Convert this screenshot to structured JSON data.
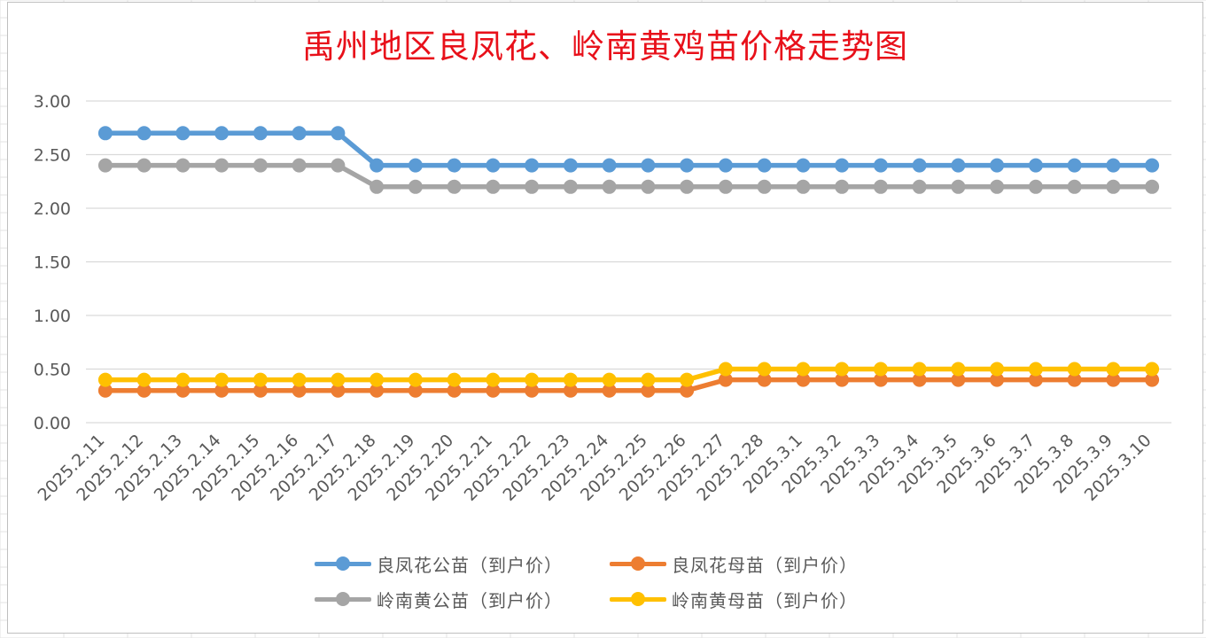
{
  "chart_data": {
    "type": "line",
    "title": "禹州地区良凤花、岭南黄鸡苗价格走势图",
    "xlabel": "",
    "ylabel": "",
    "ylim": [
      0,
      3
    ],
    "y_ticks": [
      "0.00",
      "0.50",
      "1.00",
      "1.50",
      "2.00",
      "2.50",
      "3.00"
    ],
    "grid": "horizontal",
    "legend_position": "bottom",
    "categories": [
      "2025.2.11",
      "2025.2.12",
      "2025.2.13",
      "2025.2.14",
      "2025.2.15",
      "2025.2.16",
      "2025.2.17",
      "2025.2.18",
      "2025.2.19",
      "2025.2.20",
      "2025.2.21",
      "2025.2.22",
      "2025.2.23",
      "2025.2.24",
      "2025.2.25",
      "2025.2.26",
      "2025.2.27",
      "2025.2.28",
      "2025.3.1",
      "2025.3.2",
      "2025.3.3",
      "2025.3.4",
      "2025.3.5",
      "2025.3.6",
      "2025.3.7",
      "2025.3.8",
      "2025.3.9",
      "2025.3.10"
    ],
    "series": [
      {
        "name": "良凤花公苗（到户价）",
        "color": "#5b9bd5",
        "values": [
          2.7,
          2.7,
          2.7,
          2.7,
          2.7,
          2.7,
          2.7,
          2.4,
          2.4,
          2.4,
          2.4,
          2.4,
          2.4,
          2.4,
          2.4,
          2.4,
          2.4,
          2.4,
          2.4,
          2.4,
          2.4,
          2.4,
          2.4,
          2.4,
          2.4,
          2.4,
          2.4,
          2.4
        ]
      },
      {
        "name": "良凤花母苗（到户价）",
        "color": "#ed7d31",
        "values": [
          0.3,
          0.3,
          0.3,
          0.3,
          0.3,
          0.3,
          0.3,
          0.3,
          0.3,
          0.3,
          0.3,
          0.3,
          0.3,
          0.3,
          0.3,
          0.3,
          0.4,
          0.4,
          0.4,
          0.4,
          0.4,
          0.4,
          0.4,
          0.4,
          0.4,
          0.4,
          0.4,
          0.4
        ]
      },
      {
        "name": "岭南黄公苗（到户价）",
        "color": "#a5a5a5",
        "values": [
          2.4,
          2.4,
          2.4,
          2.4,
          2.4,
          2.4,
          2.4,
          2.2,
          2.2,
          2.2,
          2.2,
          2.2,
          2.2,
          2.2,
          2.2,
          2.2,
          2.2,
          2.2,
          2.2,
          2.2,
          2.2,
          2.2,
          2.2,
          2.2,
          2.2,
          2.2,
          2.2,
          2.2
        ]
      },
      {
        "name": "岭南黄母苗（到户价）",
        "color": "#ffc000",
        "values": [
          0.4,
          0.4,
          0.4,
          0.4,
          0.4,
          0.4,
          0.4,
          0.4,
          0.4,
          0.4,
          0.4,
          0.4,
          0.4,
          0.4,
          0.4,
          0.4,
          0.5,
          0.5,
          0.5,
          0.5,
          0.5,
          0.5,
          0.5,
          0.5,
          0.5,
          0.5,
          0.5,
          0.5
        ]
      }
    ],
    "draw_order": [
      2,
      0,
      1,
      3
    ]
  }
}
